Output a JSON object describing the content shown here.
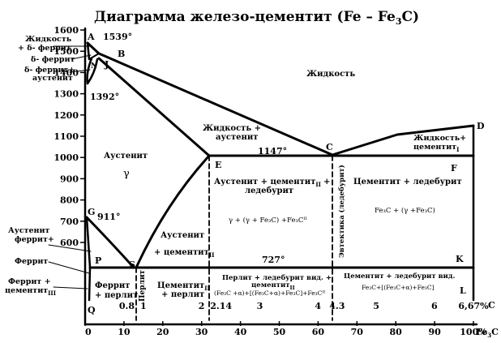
{
  "title_parts": {
    "prefix": "Диаграмма железо-цементит (Fe – Fe",
    "sub": "3",
    "suffix": "C)"
  },
  "y_ticks": [
    "1600",
    "1500",
    "1400",
    "1300",
    "1200",
    "1100",
    "1000",
    "900",
    "800",
    "700",
    "600"
  ],
  "x_pct_ticks": [
    "0",
    "10",
    "20",
    "30",
    "40",
    "50",
    "60",
    "70",
    "80",
    "90",
    "100%"
  ],
  "x_pct_suffix": "Fe",
  "x_pct_suffix_sub": "3",
  "x_pct_suffix_end": "C",
  "x_c_ticks": [
    "0.8",
    "1",
    "2",
    "2.14",
    "3",
    "4",
    "4.3",
    "5",
    "6",
    "6,67%"
  ],
  "x_c_label": "C",
  "points": {
    "A": "A",
    "B": "B",
    "J": "J",
    "N": "N",
    "D": "D",
    "C": "C",
    "E": "E",
    "F": "F",
    "G": "G",
    "P": "P",
    "S": "S",
    "K": "K",
    "Q": "Q",
    "L": "L"
  },
  "temps": {
    "t1539": "1539°",
    "t1392": "1392°",
    "t1147": "1147°",
    "t911": "911°",
    "t727": "727°"
  },
  "left_labels": {
    "liquid_delta_1": "Жидкость",
    "liquid_delta_2": "+ δ- феррит",
    "delta": "δ- феррит",
    "delta_aust_1": "δ- феррит+",
    "delta_aust_2": "аустенит",
    "aust_ferrite_1": "Аустенит",
    "aust_ferrite_2": "феррит+",
    "ferrite": "Феррит",
    "ferrite_cem_1": "Феррит +",
    "ferrite_cem_2": "цементит",
    "ferrite_cem_sub": "III"
  },
  "regions": {
    "liquid": "Жидкость",
    "austenite": "Аустенит",
    "gamma": "γ",
    "liq_aust_1": "Жидкость +",
    "liq_aust_2": "аустенит",
    "liq_cem_1": "Жидкость+",
    "liq_cem_2": "цементит",
    "liq_cem_sub": "I",
    "aust_cem_led_1": "Аустенит + цементит",
    "aust_cem_led_sub": "II",
    "aust_cem_led_plus": "+",
    "aust_cem_led_2": "ледебурит",
    "cem_led": "Цементит + ледебурит",
    "formula_left": "γ + (γ + Fe₃C) +Fe₃Cᴵᴵ",
    "formula_right": "Fe₃C  +  (γ +Fe₃C)",
    "aust_cem2_1": "Аустенит",
    "aust_cem2_2": "+ цементит",
    "aust_cem2_sub": "II",
    "ferrite_perlite_1": "Феррит",
    "ferrite_perlite_2": "+ перлит",
    "perlite_vertical": "Перлит",
    "eutectic_vertical": "Эвтектика (ледебурит)",
    "cem_perlite_1": "Цементит",
    "cem_perlite_sub": "II",
    "cem_perlite_2": "+ перлит",
    "perlite_led_1": "Перлит + ледебурит вид. +",
    "perlite_led_2": "цементит",
    "perlite_led_sub": "II",
    "perlite_led_formula": "(Fe₃C +α)+[(Fe₃C+α)+Fe₃C]+Fe₃Cᴵᴵ",
    "cem_led_vid_1": "Цементит + ледебурит вид.",
    "cem_led_vid_formula": "Fe₃C+[(Fe₃C+α)+Fe₃C]"
  }
}
